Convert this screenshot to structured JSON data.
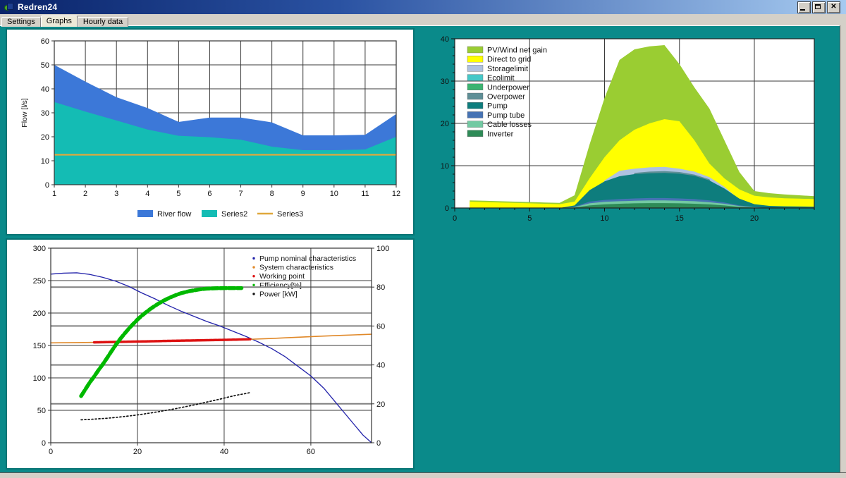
{
  "window": {
    "title": "Redren24",
    "controls": [
      "minimize",
      "maximize",
      "close"
    ]
  },
  "tabs": [
    {
      "label": "Settings",
      "selected": false
    },
    {
      "label": "Graphs",
      "selected": true
    },
    {
      "label": "Hourly data",
      "selected": false
    }
  ],
  "colors": {
    "desktop_teal": "#0A8A8A",
    "panel_border": "#077474",
    "chrome_gray": "#D4D0C8",
    "titlebar_left": "#0A246A",
    "titlebar_right": "#A6CAF0",
    "grid_line": "#3a3a3a",
    "grid_line_right_axis": "#808080"
  },
  "chart_data": [
    {
      "id": "monthly-flow",
      "type": "area",
      "title": "",
      "ylabel": "Flow [l/s]",
      "x": [
        1,
        2,
        3,
        4,
        5,
        6,
        7,
        8,
        9,
        10,
        11,
        12
      ],
      "xticks": [
        1,
        2,
        3,
        4,
        5,
        6,
        7,
        8,
        9,
        10,
        11,
        12
      ],
      "xlim": [
        1,
        12
      ],
      "ylim": [
        0,
        60
      ],
      "yticks": [
        0,
        10,
        20,
        30,
        40,
        50,
        60
      ],
      "legend_position": "bottom",
      "series": [
        {
          "name": "River flow",
          "kind": "area",
          "color": "#3C78D8",
          "values": [
            50,
            43,
            36.5,
            32,
            26.2,
            28,
            28,
            26,
            20.6,
            20.6,
            20.8,
            29.5
          ]
        },
        {
          "name": "Series2",
          "kind": "area",
          "color": "#14BCB4",
          "values": [
            34.5,
            30.5,
            26.8,
            23,
            20.4,
            19.8,
            18.8,
            15.9,
            14.4,
            14.4,
            14.7,
            20
          ]
        },
        {
          "name": "Series3",
          "kind": "line",
          "color": "#E0A83C",
          "values": [
            12.5,
            12.5,
            12.5,
            12.5,
            12.5,
            12.5,
            12.5,
            12.5,
            12.5,
            12.5,
            12.5,
            12.5
          ]
        }
      ]
    },
    {
      "id": "daily-energy",
      "type": "area",
      "title": "",
      "x": [
        1,
        2,
        3,
        4,
        5,
        6,
        7,
        8,
        9,
        10,
        11,
        12,
        13,
        14,
        15,
        16,
        17,
        18,
        19,
        20,
        21,
        22,
        23,
        24
      ],
      "xlim": [
        0,
        24
      ],
      "xticks": [
        0,
        5,
        10,
        15,
        20
      ],
      "ylim": [
        0,
        40
      ],
      "yticks": [
        0,
        10,
        20,
        30,
        40
      ],
      "legend_position": "top-left-inside",
      "series": [
        {
          "name": "PV/Wind net gain",
          "color": "#9ACD32",
          "values": [
            1.8,
            1.7,
            1.6,
            1.5,
            1.4,
            1.3,
            1.2,
            3,
            15,
            26,
            35,
            37.5,
            38.2,
            38.5,
            34,
            28.5,
            23.5,
            16,
            8.5,
            4,
            3.5,
            3.2,
            3,
            2.8
          ]
        },
        {
          "name": "Direct to grid",
          "color": "#FFFF00",
          "values": [
            1.5,
            1.4,
            1.3,
            1.2,
            1.1,
            1,
            0.9,
            1.5,
            7,
            12,
            16,
            18.5,
            20,
            21,
            20.5,
            16,
            10.5,
            7,
            4.4,
            2.9,
            2.5,
            2.3,
            2.2,
            2.1
          ]
        },
        {
          "name": "Storagelimit",
          "color": "#AEC2E0",
          "values": [
            0,
            0,
            0,
            0,
            0,
            0,
            0,
            0,
            0,
            6.5,
            8.8,
            9.3,
            9.6,
            9.7,
            9.3,
            8.6,
            7.3,
            5,
            2,
            0,
            0,
            0,
            0,
            0
          ]
        },
        {
          "name": "Ecolimit",
          "color": "#45C8C8",
          "values": [
            0,
            0,
            0,
            0,
            0,
            0,
            0,
            0,
            0,
            0,
            0,
            0,
            0,
            0,
            0,
            0,
            0,
            0,
            0,
            0,
            0,
            0,
            0,
            0
          ]
        },
        {
          "name": "Underpower",
          "color": "#3CB371",
          "values": [
            0,
            0,
            0,
            0,
            0,
            0,
            0,
            0,
            0,
            0,
            0,
            0,
            0,
            0,
            0,
            0,
            0,
            0,
            0,
            0,
            0,
            0,
            0,
            0
          ]
        },
        {
          "name": "Overpower",
          "color": "#5E8F96",
          "values": [
            0,
            0,
            0,
            0,
            0,
            0,
            0,
            0,
            0,
            0,
            0,
            8.3,
            8.6,
            8.7,
            8.5,
            7.9,
            6.8,
            0,
            0,
            0,
            0,
            0,
            0,
            0
          ]
        },
        {
          "name": "Pump",
          "color": "#0E7D7D",
          "values": [
            0,
            0,
            0,
            0,
            0,
            0,
            0,
            0.6,
            4.2,
            6.3,
            7.5,
            8,
            8.2,
            8.3,
            8.1,
            7.6,
            6.5,
            4.6,
            2.2,
            0.9,
            0.5,
            0.4,
            0.35,
            0.3
          ]
        },
        {
          "name": "Pump tube",
          "color": "#4673B4",
          "values": [
            0,
            0,
            0,
            0,
            0,
            0,
            0,
            0.3,
            1.5,
            1.9,
            2.1,
            2.25,
            2.35,
            2.35,
            2.25,
            2.1,
            1.8,
            1.3,
            0.6,
            0.2,
            0,
            0,
            0,
            0
          ]
        },
        {
          "name": "Cable losses",
          "color": "#72C9A2",
          "values": [
            0,
            0,
            0,
            0,
            0,
            0,
            0,
            0.2,
            1.1,
            1.45,
            1.6,
            1.7,
            1.8,
            1.8,
            1.7,
            1.6,
            1.35,
            1,
            0.45,
            0.15,
            0,
            0,
            0,
            0
          ]
        },
        {
          "name": "Inverter",
          "color": "#2E8B57",
          "values": [
            0,
            0,
            0,
            0,
            0,
            0,
            0,
            0.1,
            0.6,
            0.85,
            1,
            1.1,
            1.15,
            1.15,
            1.1,
            1,
            0.85,
            0.6,
            0.25,
            0.1,
            0,
            0,
            0,
            0
          ]
        }
      ]
    },
    {
      "id": "pump-characteristics",
      "type": "line",
      "title": "",
      "xlim": [
        0,
        74
      ],
      "xticks": [
        0,
        20,
        40,
        60
      ],
      "left_ylim": [
        0,
        300
      ],
      "left_yticks": [
        0,
        50,
        100,
        150,
        200,
        250,
        300
      ],
      "right_ylim": [
        0,
        100
      ],
      "right_yticks": [
        0,
        20,
        40,
        60,
        80,
        100
      ],
      "legend_position": "top-right-inside",
      "series": [
        {
          "name": "Pump nominal characteristics",
          "axis": "left",
          "color": "#2222AA",
          "width": 1.3,
          "dash": "",
          "points": [
            [
              0,
              260
            ],
            [
              3,
              261.5
            ],
            [
              6,
              262
            ],
            [
              9,
              259.5
            ],
            [
              12,
              255
            ],
            [
              15,
              249
            ],
            [
              18,
              241
            ],
            [
              21,
              231
            ],
            [
              24,
              222
            ],
            [
              27,
              212
            ],
            [
              30,
              203
            ],
            [
              33,
              195
            ],
            [
              36,
              187
            ],
            [
              39,
              180
            ],
            [
              42,
              172
            ],
            [
              45,
              164
            ],
            [
              48,
              155
            ],
            [
              51,
              145
            ],
            [
              54,
              133
            ],
            [
              57,
              118
            ],
            [
              60,
              103
            ],
            [
              63,
              84
            ],
            [
              66,
              60
            ],
            [
              68,
              44
            ],
            [
              70,
              28
            ],
            [
              72,
              12
            ],
            [
              74,
              0
            ]
          ]
        },
        {
          "name": "System characteristics",
          "axis": "left",
          "color": "#E08828",
          "width": 1.6,
          "dash": "",
          "points": [
            [
              0,
              154
            ],
            [
              6,
              154.4
            ],
            [
              12,
              155
            ],
            [
              18,
              155.8
            ],
            [
              24,
              156.5
            ],
            [
              30,
              157.3
            ],
            [
              36,
              158
            ],
            [
              42,
              158.8
            ],
            [
              46,
              159.5
            ],
            [
              50,
              160.5
            ],
            [
              54,
              161.8
            ],
            [
              58,
              163
            ],
            [
              62,
              164.2
            ],
            [
              66,
              165.3
            ],
            [
              70,
              166.3
            ],
            [
              74,
              167.3
            ]
          ]
        },
        {
          "name": "Working point",
          "axis": "left",
          "color": "#DD1111",
          "width": 3.5,
          "dash": "5,1.5",
          "points": [
            [
              10,
              154.8
            ],
            [
              14,
              155.3
            ],
            [
              18,
              155.8
            ],
            [
              22,
              156.3
            ],
            [
              26,
              156.9
            ],
            [
              30,
              157.4
            ],
            [
              34,
              157.9
            ],
            [
              38,
              158.4
            ],
            [
              42,
              158.9
            ],
            [
              46,
              159.6
            ]
          ]
        },
        {
          "name": "Efficiency[%]",
          "axis": "right",
          "color": "#00B800",
          "width": 5.5,
          "dash": "9,3",
          "points": [
            [
              7,
              24
            ],
            [
              8,
              27.5
            ],
            [
              9,
              31
            ],
            [
              10,
              34
            ],
            [
              11,
              37.3
            ],
            [
              12,
              40.3
            ],
            [
              13,
              43.6
            ],
            [
              14,
              47
            ],
            [
              15,
              50.3
            ],
            [
              16,
              53.3
            ],
            [
              17,
              56
            ],
            [
              18,
              58.6
            ],
            [
              19,
              61
            ],
            [
              20,
              63.3
            ],
            [
              21,
              65.3
            ],
            [
              22,
              67.1
            ],
            [
              23,
              68.8
            ],
            [
              24,
              70.3
            ],
            [
              25,
              71.7
            ],
            [
              26,
              73
            ],
            [
              27,
              74.1
            ],
            [
              28,
              75.1
            ],
            [
              29,
              76
            ],
            [
              30,
              76.8
            ],
            [
              31,
              77.4
            ],
            [
              32,
              77.9
            ],
            [
              33,
              78.3
            ],
            [
              34,
              78.7
            ],
            [
              35,
              79
            ],
            [
              36,
              79.2
            ],
            [
              38,
              79.4
            ],
            [
              40,
              79.5
            ],
            [
              42,
              79.5
            ],
            [
              44,
              79.5
            ]
          ]
        },
        {
          "name": "Power [kW]",
          "axis": "right",
          "color": "#111111",
          "width": 1.7,
          "dash": "2,3",
          "points": [
            [
              7,
              11.8
            ],
            [
              9,
              12
            ],
            [
              11,
              12.3
            ],
            [
              13,
              12.6
            ],
            [
              15,
              13
            ],
            [
              17,
              13.5
            ],
            [
              19,
              14
            ],
            [
              21,
              14.6
            ],
            [
              23,
              15.3
            ],
            [
              25,
              16
            ],
            [
              27,
              16.8
            ],
            [
              29,
              17.6
            ],
            [
              31,
              18.5
            ],
            [
              33,
              19.4
            ],
            [
              35,
              20.4
            ],
            [
              37,
              21.4
            ],
            [
              39,
              22.4
            ],
            [
              41,
              23.5
            ],
            [
              43,
              24.5
            ],
            [
              45,
              25.3
            ],
            [
              46,
              25.8
            ]
          ]
        }
      ]
    }
  ]
}
